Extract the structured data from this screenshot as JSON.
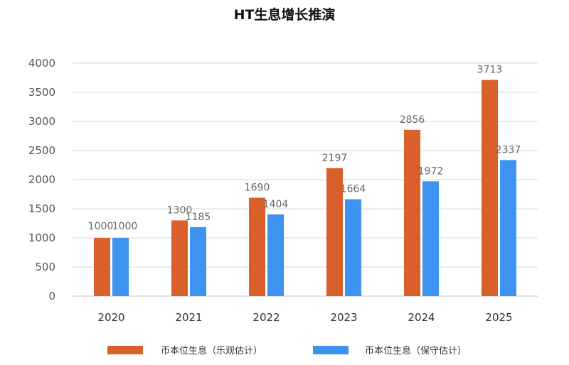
{
  "chart_data": {
    "type": "bar",
    "title": "HT生息增长推演",
    "xlabel": "",
    "ylabel": "",
    "categories": [
      "2020",
      "2021",
      "2022",
      "2023",
      "2024",
      "2025"
    ],
    "series": [
      {
        "name": "币本位生息（乐观估计）",
        "color": "#D95F2B",
        "values": [
          1000,
          1300,
          1690,
          2197,
          2856,
          3713
        ]
      },
      {
        "name": "币本位生息（保守估计）",
        "color": "#3D93F0",
        "values": [
          1000,
          1185,
          1404,
          1664,
          1972,
          2337
        ]
      }
    ],
    "yticks": [
      0,
      500,
      1000,
      1500,
      2000,
      2500,
      3000,
      3500,
      4000
    ],
    "ylim": [
      0,
      4000
    ],
    "grid": true,
    "legend": "bottom"
  }
}
